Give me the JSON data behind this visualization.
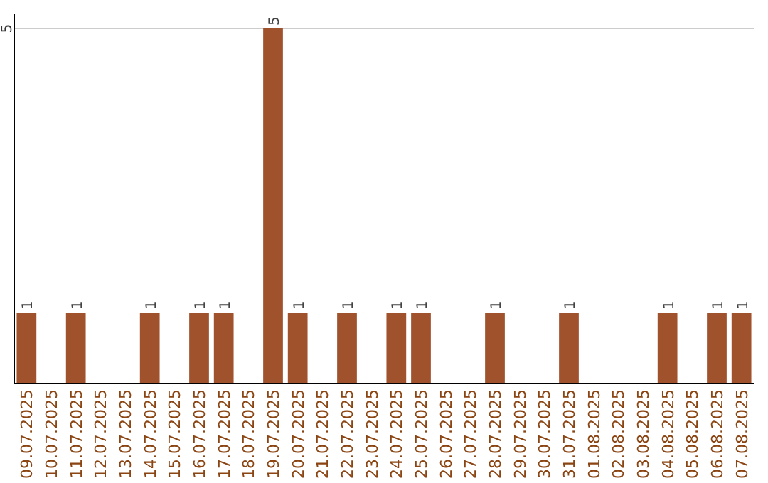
{
  "chart_data": {
    "type": "bar",
    "categories": [
      "09.07.2025",
      "10.07.2025",
      "11.07.2025",
      "12.07.2025",
      "13.07.2025",
      "14.07.2025",
      "15.07.2025",
      "16.07.2025",
      "17.07.2025",
      "18.07.2025",
      "19.07.2025",
      "20.07.2025",
      "21.07.2025",
      "22.07.2025",
      "23.07.2025",
      "24.07.2025",
      "25.07.2025",
      "26.07.2025",
      "27.07.2025",
      "28.07.2025",
      "29.07.2025",
      "30.07.2025",
      "31.07.2025",
      "01.08.2025",
      "02.08.2025",
      "03.08.2025",
      "04.08.2025",
      "05.08.2025",
      "06.08.2025",
      "07.08.2025"
    ],
    "values": [
      1,
      0,
      1,
      0,
      0,
      1,
      0,
      1,
      1,
      0,
      5,
      1,
      0,
      1,
      0,
      1,
      1,
      0,
      0,
      1,
      0,
      0,
      1,
      0,
      0,
      0,
      1,
      0,
      1,
      1
    ],
    "value_labels": [
      "1",
      null,
      "1",
      null,
      null,
      "1",
      null,
      "1",
      "1",
      null,
      "5",
      "1",
      null,
      "1",
      null,
      "1",
      "1",
      null,
      null,
      "1",
      null,
      null,
      "1",
      null,
      null,
      null,
      "1",
      null,
      "1",
      "1"
    ],
    "color": "#a0522d",
    "ylim": [
      0,
      5.2
    ],
    "yticks": [
      5
    ],
    "grid": "y"
  }
}
